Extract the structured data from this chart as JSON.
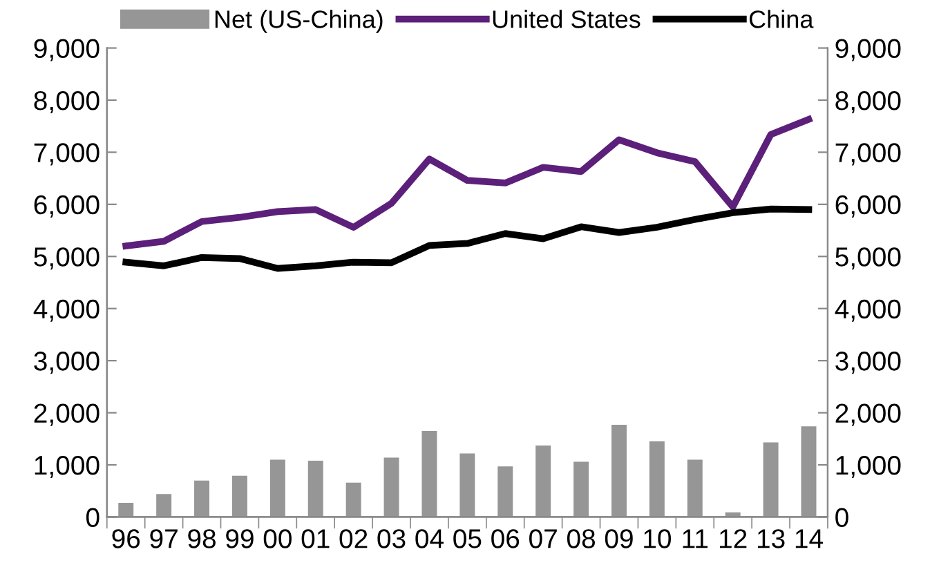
{
  "chart_data": {
    "type": "bar",
    "categories": [
      "96",
      "97",
      "98",
      "99",
      "00",
      "01",
      "02",
      "03",
      "04",
      "05",
      "06",
      "07",
      "08",
      "09",
      "10",
      "11",
      "12",
      "13",
      "14"
    ],
    "series": [
      {
        "name": "Net (US-China)",
        "color": "#969696",
        "values": [
          270,
          440,
          700,
          790,
          1100,
          1080,
          660,
          1140,
          1650,
          1220,
          970,
          1370,
          1060,
          1770,
          1450,
          1100,
          90,
          1430,
          1740
        ]
      },
      {
        "name": "United States",
        "type": "line",
        "color": "#5c1f7a",
        "values": [
          5200,
          5290,
          5670,
          5750,
          5860,
          5900,
          5560,
          6020,
          6870,
          6460,
          6410,
          6710,
          6630,
          7240,
          6990,
          6820,
          5950,
          7340,
          7630
        ]
      },
      {
        "name": "China",
        "type": "line",
        "color": "#000000",
        "values": [
          4890,
          4820,
          4980,
          4960,
          4770,
          4820,
          4890,
          4880,
          5210,
          5250,
          5440,
          5340,
          5570,
          5460,
          5560,
          5710,
          5840,
          5910,
          5900
        ]
      }
    ],
    "ylim": [
      0,
      9000
    ],
    "yticks": [
      {
        "value": 0,
        "label": "0"
      },
      {
        "value": 1000,
        "label": "1,000"
      },
      {
        "value": 2000,
        "label": "2,000"
      },
      {
        "value": 3000,
        "label": "3,000"
      },
      {
        "value": 4000,
        "label": "4,000"
      },
      {
        "value": 5000,
        "label": "5,000"
      },
      {
        "value": 6000,
        "label": "6,000"
      },
      {
        "value": 7000,
        "label": "7,000"
      },
      {
        "value": 8000,
        "label": "8,000"
      },
      {
        "value": 9000,
        "label": "9,000"
      }
    ],
    "y2lim": [
      0,
      9000
    ],
    "y2ticks": [
      {
        "value": 0,
        "label": "0"
      },
      {
        "value": 1000,
        "label": "1,000"
      },
      {
        "value": 2000,
        "label": "2,000"
      },
      {
        "value": 3000,
        "label": "3,000"
      },
      {
        "value": 4000,
        "label": "4,000"
      },
      {
        "value": 5000,
        "label": "5,000"
      },
      {
        "value": 6000,
        "label": "6,000"
      },
      {
        "value": 7000,
        "label": "7,000"
      },
      {
        "value": 8000,
        "label": "8,000"
      },
      {
        "value": 9000,
        "label": "9,000"
      }
    ],
    "grid": false,
    "legend": "top",
    "line_style": "solid",
    "marker": "none"
  }
}
